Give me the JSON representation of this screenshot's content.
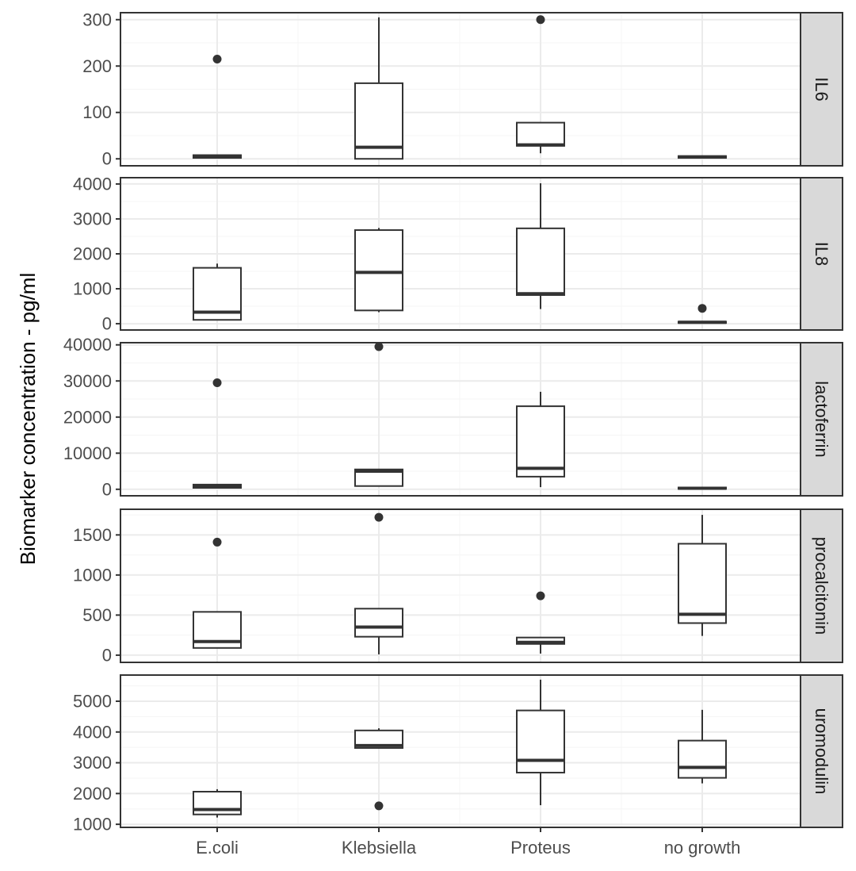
{
  "chart_data": {
    "type": "boxplot",
    "facet_layout": "stacked rows, free y scales, facet labels on right strips",
    "ylabel": "Biomarker concentration - pg/ml",
    "xlabel": "",
    "categories": [
      "E.coli",
      "Klebsiella",
      "Proteus",
      "no growth"
    ],
    "grid": true,
    "colors": {
      "panel_border": "#333333",
      "strip_fill": "#d9d9d9",
      "grid_major": "#ebebeb",
      "grid_minor": "#f5f5f5",
      "box_line": "#333333"
    },
    "panels": [
      {
        "label": "IL6",
        "ylim": [
          -15,
          315
        ],
        "yticks": [
          0,
          100,
          200,
          300
        ],
        "ytick_labels": [
          "0",
          "100",
          "200",
          "300"
        ],
        "boxes": [
          {
            "category": "E.coli",
            "lower_whisker": 2,
            "q1": 2,
            "median": 5,
            "q3": 8,
            "upper_whisker": 8,
            "outliers": [
              215
            ]
          },
          {
            "category": "Klebsiella",
            "lower_whisker": 0,
            "q1": 0,
            "median": 25,
            "q3": 163,
            "upper_whisker": 305,
            "outliers": []
          },
          {
            "category": "Proteus",
            "lower_whisker": 12,
            "q1": 28,
            "median": 30,
            "q3": 78,
            "upper_whisker": 78,
            "outliers": [
              300
            ]
          },
          {
            "category": "no growth",
            "lower_whisker": 2,
            "q1": 2,
            "median": 4,
            "q3": 6,
            "upper_whisker": 6,
            "outliers": []
          }
        ]
      },
      {
        "label": "IL8",
        "ylim": [
          -180,
          4180
        ],
        "yticks": [
          0,
          1000,
          2000,
          3000,
          4000
        ],
        "ytick_labels": [
          "0",
          "1000",
          "2000",
          "3000",
          "4000"
        ],
        "boxes": [
          {
            "category": "E.coli",
            "lower_whisker": 110,
            "q1": 110,
            "median": 330,
            "q3": 1600,
            "upper_whisker": 1720,
            "outliers": []
          },
          {
            "category": "Klebsiella",
            "lower_whisker": 330,
            "q1": 380,
            "median": 1470,
            "q3": 2680,
            "upper_whisker": 2740,
            "outliers": []
          },
          {
            "category": "Proteus",
            "lower_whisker": 420,
            "q1": 820,
            "median": 860,
            "q3": 2730,
            "upper_whisker": 4020,
            "outliers": []
          },
          {
            "category": "no growth",
            "lower_whisker": 20,
            "q1": 20,
            "median": 40,
            "q3": 60,
            "upper_whisker": 60,
            "outliers": [
              440
            ]
          }
        ]
      },
      {
        "label": "lactoferrin",
        "ylim": [
          -1800,
          40600
        ],
        "yticks": [
          0,
          10000,
          20000,
          30000,
          40000
        ],
        "ytick_labels": [
          "0",
          "10000",
          "20000",
          "30000",
          "40000"
        ],
        "boxes": [
          {
            "category": "E.coli",
            "lower_whisker": 400,
            "q1": 400,
            "median": 800,
            "q3": 1300,
            "upper_whisker": 1300,
            "outliers": [
              29500
            ]
          },
          {
            "category": "Klebsiella",
            "lower_whisker": 900,
            "q1": 900,
            "median": 5000,
            "q3": 5500,
            "upper_whisker": 5500,
            "outliers": [
              39500
            ]
          },
          {
            "category": "Proteus",
            "lower_whisker": 600,
            "q1": 3500,
            "median": 5800,
            "q3": 23000,
            "upper_whisker": 27000,
            "outliers": []
          },
          {
            "category": "no growth",
            "lower_whisker": 100,
            "q1": 100,
            "median": 300,
            "q3": 500,
            "upper_whisker": 500,
            "outliers": []
          }
        ]
      },
      {
        "label": "procalcitonin",
        "ylim": [
          -90,
          1820
        ],
        "yticks": [
          0,
          500,
          1000,
          1500
        ],
        "ytick_labels": [
          "0",
          "500",
          "1000",
          "1500"
        ],
        "boxes": [
          {
            "category": "E.coli",
            "lower_whisker": 90,
            "q1": 90,
            "median": 170,
            "q3": 540,
            "upper_whisker": 540,
            "outliers": [
              1410
            ]
          },
          {
            "category": "Klebsiella",
            "lower_whisker": 10,
            "q1": 230,
            "median": 350,
            "q3": 580,
            "upper_whisker": 580,
            "outliers": [
              1720
            ]
          },
          {
            "category": "Proteus",
            "lower_whisker": 20,
            "q1": 140,
            "median": 160,
            "q3": 220,
            "upper_whisker": 220,
            "outliers": [
              740
            ]
          },
          {
            "category": "no growth",
            "lower_whisker": 240,
            "q1": 400,
            "median": 510,
            "q3": 1390,
            "upper_whisker": 1750,
            "outliers": []
          }
        ]
      },
      {
        "label": "uromodulin",
        "ylim": [
          900,
          5850
        ],
        "yticks": [
          1000,
          2000,
          3000,
          4000,
          5000
        ],
        "ytick_labels": [
          "1000",
          "2000",
          "3000",
          "4000",
          "5000"
        ],
        "boxes": [
          {
            "category": "E.coli",
            "lower_whisker": 1220,
            "q1": 1320,
            "median": 1480,
            "q3": 2060,
            "upper_whisker": 2140,
            "outliers": []
          },
          {
            "category": "Klebsiella",
            "lower_whisker": 3480,
            "q1": 3480,
            "median": 3560,
            "q3": 4050,
            "upper_whisker": 4120,
            "outliers": [
              1600
            ]
          },
          {
            "category": "Proteus",
            "lower_whisker": 1620,
            "q1": 2680,
            "median": 3080,
            "q3": 4700,
            "upper_whisker": 5700,
            "outliers": []
          },
          {
            "category": "no growth",
            "lower_whisker": 2330,
            "q1": 2510,
            "median": 2850,
            "q3": 3720,
            "upper_whisker": 4720,
            "outliers": []
          }
        ]
      }
    ]
  }
}
